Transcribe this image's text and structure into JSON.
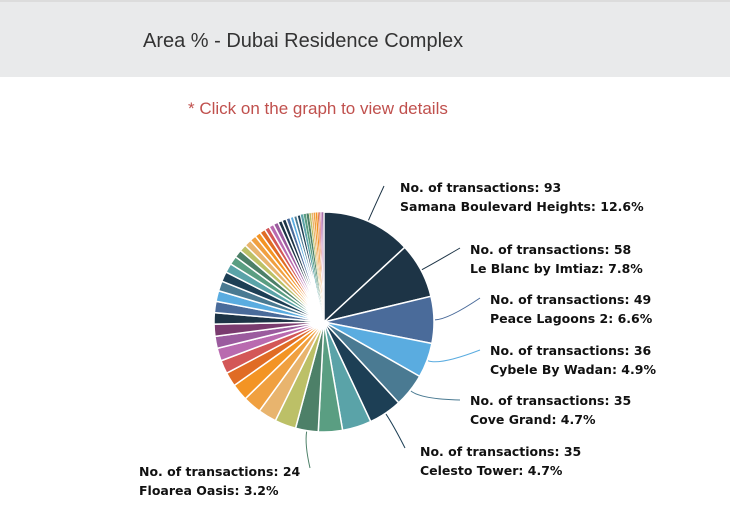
{
  "header": {
    "title": "Area % - Dubai Residence Complex"
  },
  "note": "* Click on the graph to view details",
  "chart_data": {
    "type": "pie",
    "title": "Area % - Dubai Residence Complex",
    "start": "12 o'clock, clockwise",
    "labeled_slices": [
      {
        "name": "Samana Boulevard Heights",
        "transactions": 93,
        "percent": 12.6,
        "color": "#1d3446",
        "label": "No. of transactions: 93",
        "label2": "Samana Boulevard Heights: 12.6%"
      },
      {
        "name": "Le Blanc by Imtiaz",
        "transactions": 58,
        "percent": 7.8,
        "color": "#1d3446",
        "label": "No. of transactions: 58",
        "label2": "Le Blanc by Imtiaz: 7.8%"
      },
      {
        "name": "Peace Lagoons 2",
        "transactions": 49,
        "percent": 6.6,
        "color": "#4a6b9a",
        "label": "No. of transactions: 49",
        "label2": "Peace Lagoons 2: 6.6%"
      },
      {
        "name": "Cybele By Wadan",
        "transactions": 36,
        "percent": 4.9,
        "color": "#5aace0",
        "label": "No. of transactions: 36",
        "label2": "Cybele By Wadan: 4.9%"
      },
      {
        "name": "Cove Grand",
        "transactions": 35,
        "percent": 4.7,
        "color": "#4a7a92",
        "label": "No. of transactions: 35",
        "label2": "Cove Grand: 4.7%"
      },
      {
        "name": "Celesto Tower",
        "transactions": 35,
        "percent": 4.7,
        "color": "#1d3f55",
        "label": "No. of transactions: 35",
        "label2": "Celesto Tower: 4.7%"
      },
      {
        "name": "Floarea Oasis",
        "transactions": 24,
        "percent": 3.2,
        "color": "#4d8068",
        "label": "No. of transactions: 24",
        "label2": "Floarea Oasis: 3.2%"
      }
    ],
    "all_slice_percents": [
      12.6,
      7.8,
      6.6,
      4.9,
      4.7,
      4.7,
      4.1,
      3.4,
      3.2,
      3.0,
      2.6,
      2.6,
      2.4,
      2.0,
      1.9,
      1.8,
      1.7,
      1.7,
      1.6,
      1.6,
      1.5,
      1.4,
      1.4,
      1.3,
      1.2,
      1.1,
      1.0,
      1.0,
      0.9,
      0.8,
      0.8,
      0.7,
      0.7,
      0.7,
      0.6,
      0.6,
      0.6,
      0.5,
      0.5,
      0.5,
      0.4,
      0.4,
      0.4,
      0.3,
      0.3,
      0.3,
      0.3,
      0.2,
      0.2,
      0.2,
      0.2,
      0.1
    ],
    "palette": [
      "#1d3446",
      "#1d3446",
      "#4a6b9a",
      "#5aace0",
      "#4a7a92",
      "#1d3f55",
      "#5aa3a8",
      "#5a9e82",
      "#4d8068",
      "#bcc067",
      "#e8b46e",
      "#f0a040",
      "#f39424",
      "#e06c25",
      "#d35757",
      "#b96aaf",
      "#9b5b9e",
      "#7a3b6f",
      "#1d3446",
      "#4a6b9a",
      "#5aace0",
      "#4a7a92",
      "#1d3f55",
      "#5aa3a8",
      "#5a9e82",
      "#4d8068",
      "#bcc067",
      "#e8b46e",
      "#f0a040",
      "#f39424",
      "#e06c25",
      "#d35757",
      "#b96aaf",
      "#9b5b9e"
    ]
  }
}
